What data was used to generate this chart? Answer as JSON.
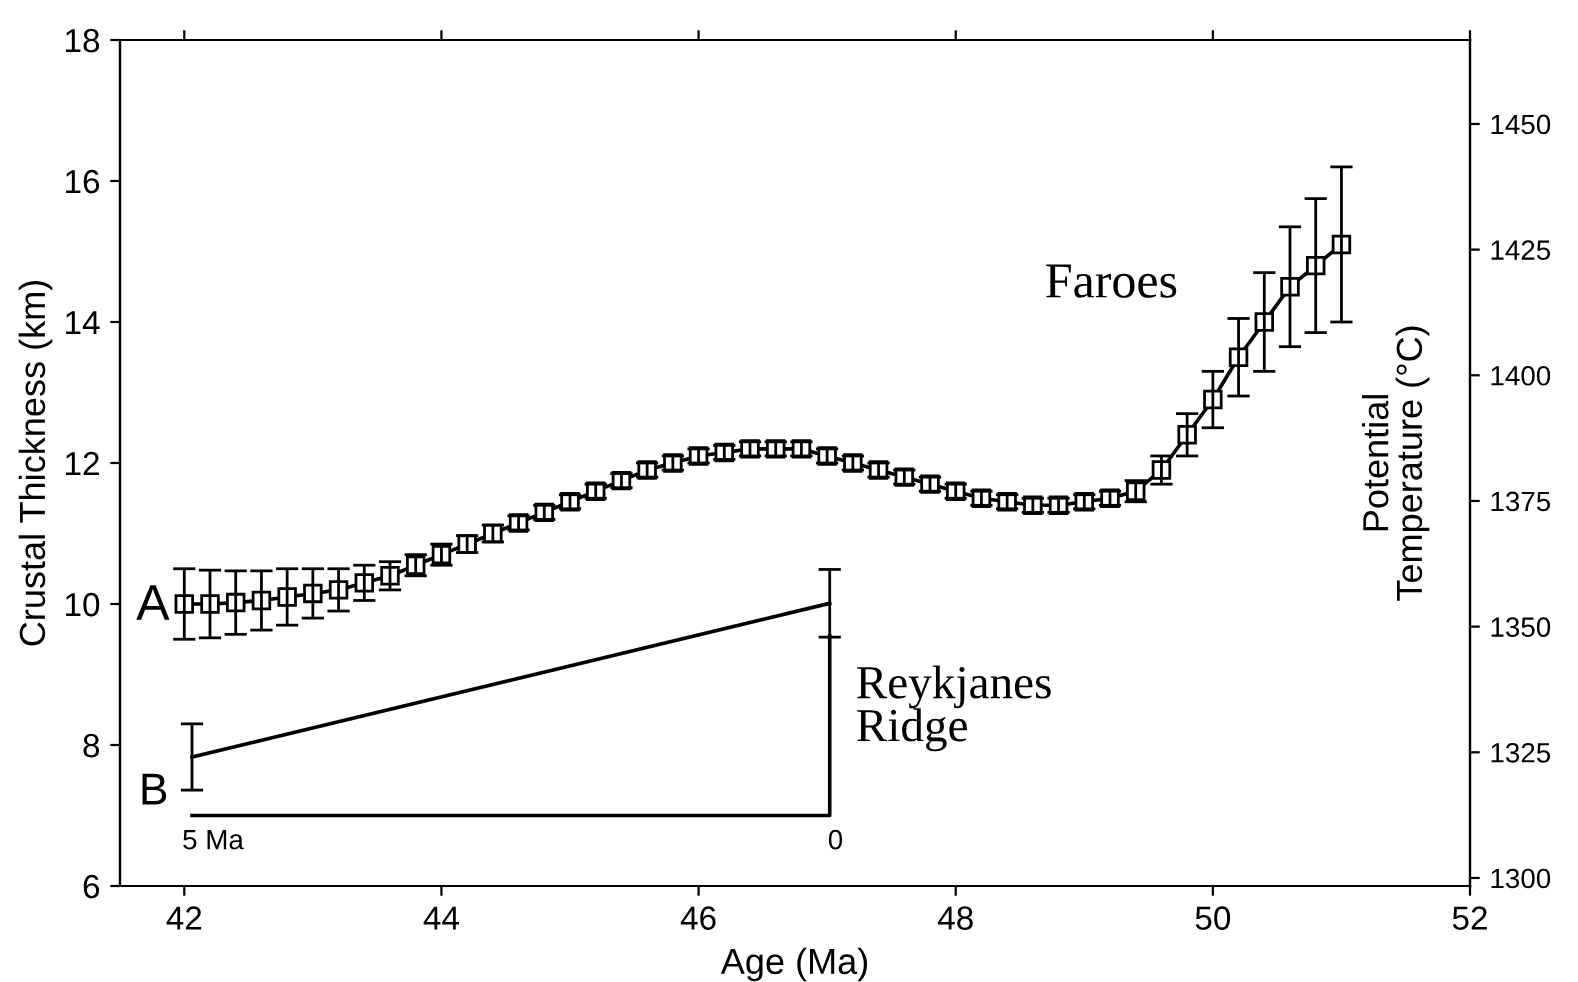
{
  "chart_data": {
    "type": "line",
    "xlabel": "Age (Ma)",
    "ylabel": "Crustal Thickness (km)",
    "y2label": "Potential\nTemperature (°C)",
    "xlim": [
      41.5,
      52
    ],
    "xticks": [
      42,
      44,
      46,
      48,
      50,
      52
    ],
    "ylim": [
      6,
      18
    ],
    "yticks": [
      6,
      8,
      10,
      12,
      14,
      16,
      18
    ],
    "y2lim": [
      1298.4,
      1466.7
    ],
    "y2ticks": [
      1300,
      1325,
      1350,
      1375,
      1400,
      1425,
      1450
    ],
    "grid": false,
    "legend": false,
    "series": [
      {
        "color": "#000000",
        "marker": "square",
        "x": [
          42.0,
          42.2,
          42.4,
          42.6,
          42.8,
          43.0,
          43.2,
          43.4,
          43.6,
          43.8,
          44.0,
          44.2,
          44.4,
          44.6,
          44.8,
          45.0,
          45.2,
          45.4,
          45.6,
          45.8,
          46.0,
          46.2,
          46.4,
          46.6,
          46.8,
          47.0,
          47.2,
          47.4,
          47.6,
          47.8,
          48.0,
          48.2,
          48.4,
          48.6,
          48.8,
          49.0,
          49.2,
          49.4,
          49.6,
          49.8,
          50.0,
          50.2,
          50.4,
          50.6,
          50.8,
          51.0
        ],
        "values": [
          10.0,
          10.0,
          10.02,
          10.05,
          10.1,
          10.15,
          10.2,
          10.3,
          10.4,
          10.55,
          10.7,
          10.85,
          11.0,
          11.15,
          11.3,
          11.45,
          11.6,
          11.75,
          11.9,
          12.0,
          12.1,
          12.15,
          12.2,
          12.2,
          12.2,
          12.1,
          12.0,
          11.9,
          11.8,
          11.7,
          11.6,
          11.5,
          11.45,
          11.4,
          11.4,
          11.45,
          11.5,
          11.6,
          11.9,
          12.4,
          12.9,
          13.5,
          14.0,
          14.5,
          14.8,
          15.1
        ],
        "errors": [
          0.5,
          0.48,
          0.45,
          0.42,
          0.4,
          0.35,
          0.3,
          0.25,
          0.2,
          0.15,
          0.15,
          0.12,
          0.12,
          0.1,
          0.1,
          0.1,
          0.1,
          0.1,
          0.1,
          0.1,
          0.1,
          0.1,
          0.1,
          0.1,
          0.1,
          0.1,
          0.1,
          0.1,
          0.1,
          0.1,
          0.1,
          0.1,
          0.1,
          0.1,
          0.1,
          0.1,
          0.1,
          0.15,
          0.2,
          0.3,
          0.4,
          0.55,
          0.7,
          0.85,
          0.95,
          1.1
        ]
      },
      {
        "color": "#000000",
        "marker": "none",
        "x": [
          42.06,
          47.02
        ],
        "values": [
          7.83,
          10.01
        ],
        "errors": [
          0.47,
          0.48
        ]
      },
      {
        "color": "#000000",
        "marker": "none",
        "x": [
          42.06,
          47.02,
          47.02
        ],
        "values": [
          7.0,
          7.0,
          9.55
        ]
      }
    ],
    "annotations": [
      "Faroes",
      "A",
      "B",
      "5 Ma",
      "0",
      "Reykjanes\nRidge"
    ]
  }
}
